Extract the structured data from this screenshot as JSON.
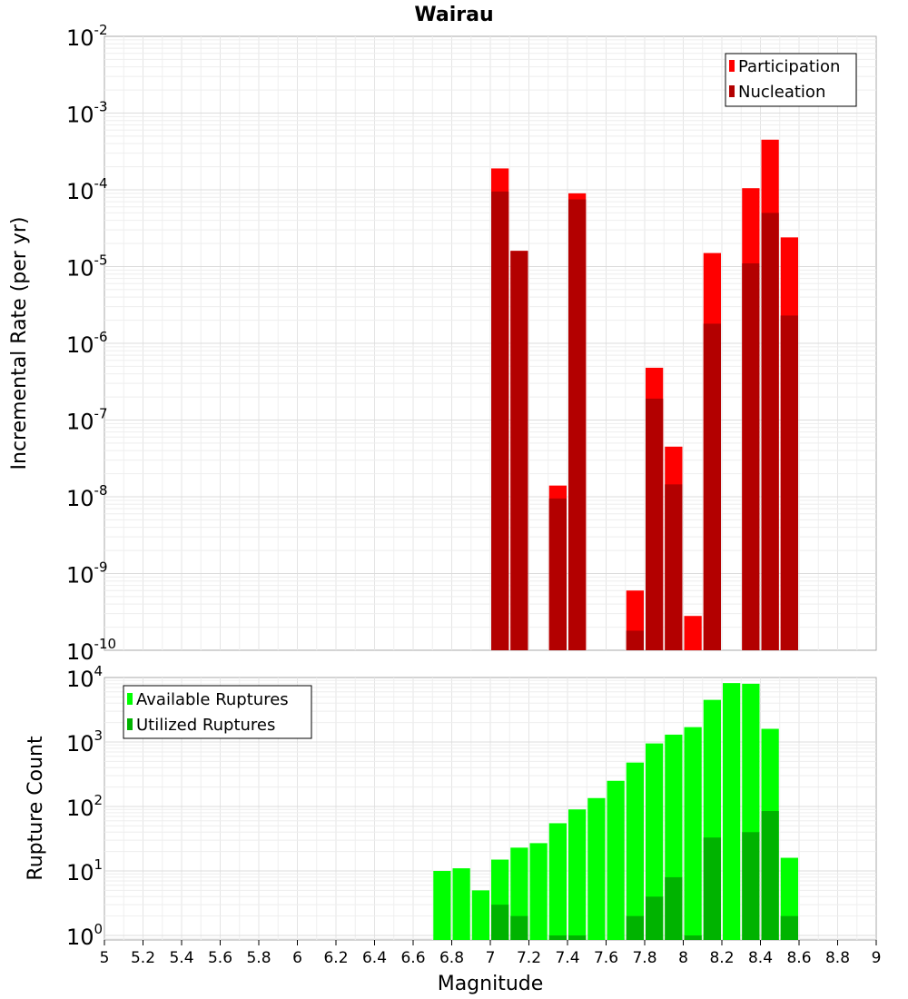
{
  "chart_data": [
    {
      "type": "bar",
      "panel": "top",
      "title": "Wairau",
      "xlabel": "",
      "ylabel": "Incremental Rate (per yr)",
      "xlim": [
        5,
        9
      ],
      "ylim_exp": [
        -10,
        -2
      ],
      "y_scale": "log",
      "bin_width": 0.1,
      "legend_position": "top-right",
      "y_tick_exponents": [
        -10,
        -9,
        -8,
        -7,
        -6,
        -5,
        -4,
        -3,
        -2
      ],
      "series": [
        {
          "name": "Participation",
          "color": "#ff0000",
          "x": [
            7.05,
            7.15,
            7.35,
            7.45,
            7.75,
            7.85,
            7.95,
            8.05,
            8.15,
            8.35,
            8.45,
            8.55
          ],
          "values": [
            0.00019,
            1.6e-05,
            1.4e-08,
            9e-05,
            6e-10,
            4.8e-07,
            4.5e-08,
            2.8e-10,
            1.5e-05,
            0.000105,
            0.00045,
            2.4e-05
          ]
        },
        {
          "name": "Nucleation",
          "color": "#b30000",
          "x": [
            7.05,
            7.15,
            7.35,
            7.45,
            7.75,
            7.85,
            7.95,
            8.15,
            8.35,
            8.45,
            8.55
          ],
          "values": [
            9.5e-05,
            1.6e-05,
            9.5e-09,
            7.5e-05,
            1.8e-10,
            1.9e-07,
            1.45e-08,
            1.8e-06,
            1.1e-05,
            5e-05,
            2.3e-06
          ]
        }
      ]
    },
    {
      "type": "bar",
      "panel": "bottom",
      "xlabel": "Magnitude",
      "ylabel": "Rupture Count",
      "xlim": [
        5,
        9
      ],
      "ylim_exp": [
        -0.07,
        4
      ],
      "y_scale": "log",
      "bin_width": 0.1,
      "legend_position": "top-left",
      "y_tick_exponents": [
        0,
        1,
        2,
        3,
        4
      ],
      "x_ticks": [
        "5",
        "5.2",
        "5.4",
        "5.6",
        "5.8",
        "6",
        "6.2",
        "6.4",
        "6.6",
        "6.8",
        "7",
        "7.2",
        "7.4",
        "7.6",
        "7.8",
        "8",
        "8.2",
        "8.4",
        "8.6",
        "8.8",
        "9"
      ],
      "series": [
        {
          "name": "Available Ruptures",
          "color": "#00ff00",
          "x": [
            6.75,
            6.85,
            6.95,
            7.05,
            7.15,
            7.25,
            7.35,
            7.45,
            7.55,
            7.65,
            7.75,
            7.85,
            7.95,
            8.05,
            8.15,
            8.25,
            8.35,
            8.45,
            8.55
          ],
          "values": [
            10,
            11,
            5,
            15,
            23,
            27,
            55,
            90,
            135,
            250,
            480,
            950,
            1300,
            1700,
            4500,
            8200,
            8000,
            1600,
            16
          ]
        },
        {
          "name": "Utilized Ruptures",
          "color": "#00b300",
          "x": [
            7.05,
            7.15,
            7.35,
            7.45,
            7.75,
            7.85,
            7.95,
            8.05,
            8.15,
            8.35,
            8.45,
            8.55
          ],
          "values": [
            3,
            2,
            1,
            1,
            2,
            4,
            8,
            1,
            33,
            40,
            85,
            2
          ]
        }
      ]
    }
  ]
}
